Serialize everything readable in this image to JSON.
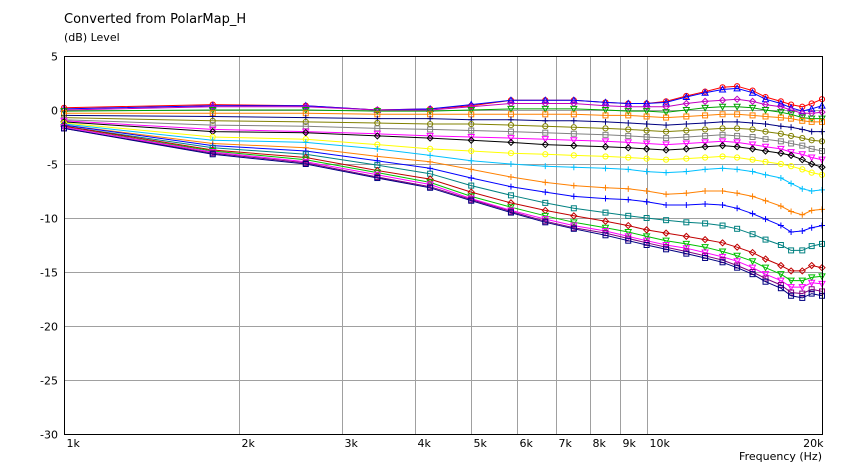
{
  "chart_data": {
    "type": "line",
    "title": "Converted from PolarMap_H",
    "ylabel": "(dB)  Level",
    "xlabel": "Frequency  (Hz)",
    "x_scale": "log",
    "xlim": [
      1000,
      20000
    ],
    "ylim": [
      -30,
      5
    ],
    "grid": true,
    "legend": "none",
    "x_major_ticks": [
      {
        "value": 1000,
        "label": "1k"
      },
      {
        "value": 2000,
        "label": "2k"
      },
      {
        "value": 3000,
        "label": "3k"
      },
      {
        "value": 4000,
        "label": "4k"
      },
      {
        "value": 5000,
        "label": "5k"
      },
      {
        "value": 6000,
        "label": "6k"
      },
      {
        "value": 7000,
        "label": "7k"
      },
      {
        "value": 8000,
        "label": "8k"
      },
      {
        "value": 9000,
        "label": "9k"
      },
      {
        "value": 10000,
        "label": "10k"
      },
      {
        "value": 20000,
        "label": "20k"
      }
    ],
    "y_ticks": [
      {
        "value": 5,
        "label": "5"
      },
      {
        "value": 0,
        "label": "0"
      },
      {
        "value": -5,
        "label": "-5"
      },
      {
        "value": -10,
        "label": "-10"
      },
      {
        "value": -15,
        "label": "-15"
      },
      {
        "value": -20,
        "label": "-20"
      },
      {
        "value": -25,
        "label": "-25"
      },
      {
        "value": -30,
        "label": "-30"
      }
    ],
    "x": [
      1000,
      1800,
      2600,
      3450,
      4250,
      5000,
      5850,
      6700,
      7500,
      8500,
      9300,
      10000,
      10800,
      11700,
      12600,
      13500,
      14300,
      15200,
      16000,
      17000,
      17700,
      18500,
      19200,
      20000
    ],
    "series": [
      {
        "color": "#ff0000",
        "marker": "circle",
        "values": [
          0.2,
          0.5,
          0.4,
          0.0,
          0.1,
          0.4,
          0.9,
          0.9,
          0.9,
          0.7,
          0.6,
          0.6,
          0.8,
          1.3,
          1.7,
          2.1,
          2.2,
          1.8,
          1.2,
          0.8,
          0.5,
          0.3,
          0.6,
          1.0
        ]
      },
      {
        "color": "#0000ff",
        "marker": "triangle",
        "values": [
          0.1,
          0.4,
          0.4,
          0.0,
          0.1,
          0.5,
          0.9,
          0.9,
          0.9,
          0.7,
          0.6,
          0.6,
          0.7,
          1.2,
          1.6,
          1.9,
          2.0,
          1.6,
          1.0,
          0.6,
          0.2,
          -0.1,
          0.1,
          0.4
        ]
      },
      {
        "color": "#c000c0",
        "marker": "diamond",
        "values": [
          0.0,
          0.3,
          0.3,
          0.0,
          0.0,
          0.3,
          0.6,
          0.6,
          0.6,
          0.4,
          0.3,
          0.3,
          0.3,
          0.6,
          0.8,
          0.9,
          1.0,
          0.8,
          0.5,
          0.3,
          0.0,
          -0.3,
          -0.3,
          -0.2
        ]
      },
      {
        "color": "#00a000",
        "marker": "triangle-down",
        "values": [
          -0.1,
          0.0,
          0.0,
          -0.1,
          -0.1,
          0.0,
          0.1,
          0.1,
          0.1,
          0.0,
          -0.1,
          -0.1,
          -0.2,
          0.0,
          0.2,
          0.3,
          0.3,
          0.2,
          0.0,
          -0.2,
          -0.4,
          -0.7,
          -0.8,
          -0.8
        ]
      },
      {
        "color": "#ff8000",
        "marker": "square",
        "values": [
          -0.3,
          -0.3,
          -0.3,
          -0.4,
          -0.4,
          -0.4,
          -0.4,
          -0.4,
          -0.4,
          -0.5,
          -0.5,
          -0.6,
          -0.7,
          -0.6,
          -0.5,
          -0.4,
          -0.4,
          -0.5,
          -0.6,
          -0.7,
          -0.8,
          -1.0,
          -1.1,
          -1.1
        ]
      },
      {
        "color": "#000080",
        "marker": "plus",
        "values": [
          -0.5,
          -0.6,
          -0.7,
          -0.8,
          -0.8,
          -0.9,
          -0.9,
          -1.0,
          -1.0,
          -1.1,
          -1.2,
          -1.3,
          -1.4,
          -1.3,
          -1.2,
          -1.1,
          -1.1,
          -1.2,
          -1.3,
          -1.5,
          -1.6,
          -1.8,
          -2.0,
          -2.0
        ]
      },
      {
        "color": "#808000",
        "marker": "circle",
        "values": [
          -0.7,
          -1.0,
          -1.1,
          -1.2,
          -1.3,
          -1.3,
          -1.4,
          -1.5,
          -1.6,
          -1.7,
          -1.8,
          -1.9,
          -2.0,
          -1.9,
          -1.8,
          -1.7,
          -1.7,
          -1.8,
          -2.0,
          -2.2,
          -2.4,
          -2.6,
          -2.8,
          -2.9
        ]
      },
      {
        "color": "#808080",
        "marker": "square",
        "values": [
          -0.9,
          -1.4,
          -1.5,
          -1.7,
          -1.8,
          -1.9,
          -2.0,
          -2.1,
          -2.2,
          -2.3,
          -2.4,
          -2.5,
          -2.6,
          -2.5,
          -2.4,
          -2.3,
          -2.4,
          -2.5,
          -2.7,
          -2.9,
          -3.1,
          -3.3,
          -3.6,
          -3.8
        ]
      },
      {
        "color": "#ff00ff",
        "marker": "triangle-down",
        "values": [
          -1.0,
          -1.8,
          -2.0,
          -2.2,
          -2.4,
          -2.5,
          -2.6,
          -2.7,
          -2.8,
          -2.9,
          -3.0,
          -3.1,
          -3.2,
          -3.1,
          -3.0,
          -2.9,
          -3.0,
          -3.2,
          -3.4,
          -3.6,
          -3.9,
          -4.1,
          -4.4,
          -4.6
        ]
      },
      {
        "color": "#000000",
        "marker": "diamond",
        "values": [
          -1.1,
          -2.0,
          -2.1,
          -2.4,
          -2.6,
          -2.8,
          -3.0,
          -3.2,
          -3.3,
          -3.4,
          -3.5,
          -3.6,
          -3.7,
          -3.6,
          -3.4,
          -3.3,
          -3.4,
          -3.6,
          -3.8,
          -4.0,
          -4.2,
          -4.6,
          -5.0,
          -5.3
        ]
      },
      {
        "color": "#ffff00",
        "marker": "circle",
        "values": [
          -1.2,
          -2.5,
          -2.7,
          -3.2,
          -3.6,
          -3.8,
          -4.0,
          -4.1,
          -4.2,
          -4.3,
          -4.4,
          -4.5,
          -4.6,
          -4.5,
          -4.4,
          -4.3,
          -4.4,
          -4.6,
          -4.8,
          -5.0,
          -5.2,
          -5.5,
          -5.8,
          -6.0
        ]
      },
      {
        "color": "#00c0ff",
        "marker": "plus",
        "values": [
          -1.3,
          -2.8,
          -3.0,
          -3.6,
          -4.2,
          -4.7,
          -5.0,
          -5.2,
          -5.3,
          -5.4,
          -5.5,
          -5.7,
          -5.8,
          -5.7,
          -5.5,
          -5.4,
          -5.5,
          -5.7,
          -6.0,
          -6.3,
          -6.8,
          -7.3,
          -7.5,
          -7.4
        ]
      },
      {
        "color": "#ff8000",
        "marker": "plus",
        "values": [
          -1.4,
          -3.1,
          -3.5,
          -4.3,
          -4.8,
          -5.5,
          -6.2,
          -6.7,
          -7.0,
          -7.2,
          -7.3,
          -7.5,
          -7.8,
          -7.7,
          -7.5,
          -7.5,
          -7.7,
          -8.0,
          -8.4,
          -8.9,
          -9.4,
          -9.7,
          -9.3,
          -9.2
        ]
      },
      {
        "color": "#0000ff",
        "marker": "plus",
        "values": [
          -1.4,
          -3.3,
          -3.8,
          -4.7,
          -5.4,
          -6.3,
          -7.1,
          -7.6,
          -8.0,
          -8.2,
          -8.3,
          -8.5,
          -8.8,
          -8.8,
          -8.7,
          -8.8,
          -9.1,
          -9.6,
          -10.1,
          -10.7,
          -11.3,
          -11.2,
          -10.9,
          -10.7
        ]
      },
      {
        "color": "#008080",
        "marker": "square",
        "values": [
          -1.5,
          -3.5,
          -4.1,
          -5.1,
          -5.9,
          -7.0,
          -7.9,
          -8.6,
          -9.1,
          -9.5,
          -9.8,
          -10.0,
          -10.2,
          -10.4,
          -10.5,
          -10.7,
          -11.0,
          -11.5,
          -12.0,
          -12.5,
          -13.0,
          -13.0,
          -12.6,
          -12.4
        ]
      },
      {
        "color": "#c00000",
        "marker": "diamond",
        "values": [
          -1.5,
          -3.7,
          -4.4,
          -5.6,
          -6.4,
          -7.6,
          -8.6,
          -9.3,
          -9.8,
          -10.3,
          -10.7,
          -11.1,
          -11.4,
          -11.7,
          -12.0,
          -12.3,
          -12.7,
          -13.2,
          -13.8,
          -14.4,
          -14.9,
          -14.9,
          -14.4,
          -14.6
        ]
      },
      {
        "color": "#00c000",
        "marker": "triangle-down",
        "values": [
          -1.6,
          -3.8,
          -4.6,
          -5.8,
          -6.7,
          -8.0,
          -9.0,
          -9.8,
          -10.4,
          -10.9,
          -11.3,
          -11.7,
          -12.1,
          -12.4,
          -12.7,
          -13.1,
          -13.5,
          -14.0,
          -14.6,
          -15.2,
          -15.8,
          -15.8,
          -15.5,
          -15.4
        ]
      },
      {
        "color": "#ff00ff",
        "marker": "triangle-down",
        "values": [
          -1.6,
          -3.9,
          -4.8,
          -6.0,
          -6.9,
          -8.2,
          -9.3,
          -10.1,
          -10.7,
          -11.2,
          -11.7,
          -12.1,
          -12.5,
          -12.8,
          -13.2,
          -13.6,
          -14.0,
          -14.6,
          -15.2,
          -15.8,
          -16.4,
          -16.4,
          -16.0,
          -16.1
        ]
      },
      {
        "color": "#800080",
        "marker": "square",
        "values": [
          -1.7,
          -4.0,
          -4.9,
          -6.2,
          -7.1,
          -8.3,
          -9.4,
          -10.3,
          -10.9,
          -11.4,
          -11.9,
          -12.3,
          -12.7,
          -13.1,
          -13.5,
          -13.9,
          -14.4,
          -15.0,
          -15.6,
          -16.2,
          -16.9,
          -17.0,
          -16.6,
          -16.8
        ]
      },
      {
        "color": "#000080",
        "marker": "square",
        "values": [
          -1.7,
          -4.1,
          -5.0,
          -6.3,
          -7.2,
          -8.4,
          -9.5,
          -10.4,
          -11.0,
          -11.6,
          -12.1,
          -12.5,
          -12.9,
          -13.3,
          -13.7,
          -14.1,
          -14.6,
          -15.2,
          -15.9,
          -16.5,
          -17.2,
          -17.4,
          -17.0,
          -17.2
        ]
      }
    ]
  }
}
